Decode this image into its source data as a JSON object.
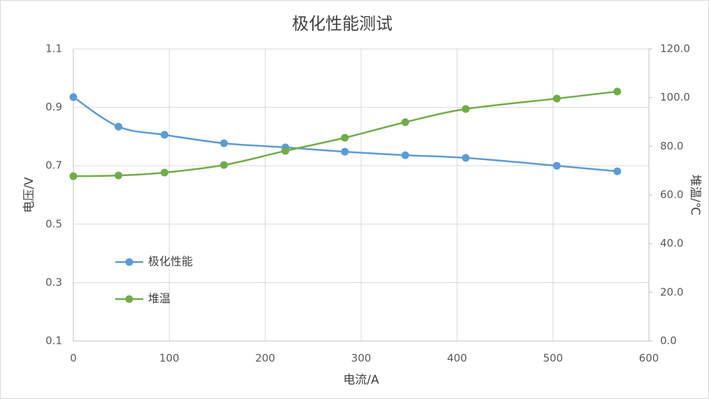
{
  "chart_data": {
    "type": "line",
    "title": "极化性能测试",
    "x_label": "电流/A",
    "y_label": "电压/V",
    "y2_label": "堆温/℃",
    "x": [
      0,
      47,
      95,
      157,
      221,
      283,
      346,
      409,
      504,
      567
    ],
    "series": [
      {
        "name": "极化性能",
        "color": "#5b9bd5",
        "values": [
          0.935,
          0.834,
          0.806,
          0.777,
          0.763,
          0.748,
          0.736,
          0.727,
          0.7,
          0.681
        ]
      },
      {
        "name": "堆温",
        "color": "#70ad47",
        "axis": "y2",
        "values": [
          67.7,
          68.0,
          69.2,
          72.3,
          78.1,
          83.5,
          89.9,
          95.3,
          99.6,
          102.5
        ]
      }
    ],
    "xlim": [
      0,
      600
    ],
    "xticks": [
      0,
      100,
      200,
      300,
      400,
      500,
      600
    ],
    "ylim": [
      0.1,
      1.1
    ],
    "yticks": [
      0.1,
      0.3,
      0.5,
      0.7,
      0.9,
      1.1
    ],
    "y2lim": [
      0,
      120
    ],
    "y2ticks": [
      {
        "value": 0,
        "label": "0.0"
      },
      {
        "value": 20,
        "label": "20.0"
      },
      {
        "value": 40,
        "label": "40.0"
      },
      {
        "value": 60,
        "label": "60.0"
      },
      {
        "value": 80,
        "label": "80.0"
      },
      {
        "value": 100,
        "label": "100.0"
      },
      {
        "value": 120,
        "label": "120.0"
      }
    ],
    "grid": true,
    "legend": "left"
  }
}
